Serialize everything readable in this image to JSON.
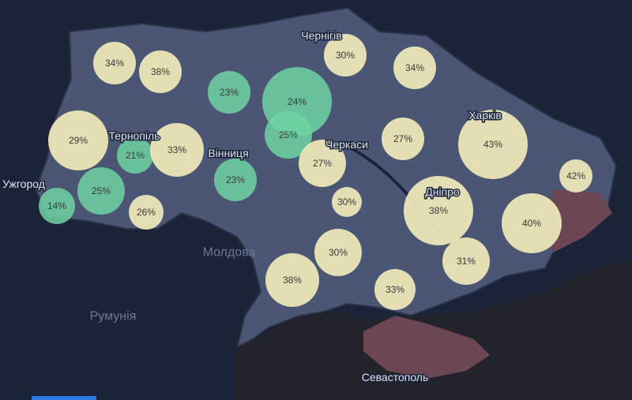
{
  "places": [
    {
      "label": "Чернігів"
    },
    {
      "label": "Харків"
    },
    {
      "label": "Тернопіль"
    },
    {
      "label": "Вінниця"
    },
    {
      "label": "Черкаси"
    },
    {
      "label": "Ужгород"
    },
    {
      "label": "Дніпро"
    },
    {
      "label": "Молдова"
    },
    {
      "label": "Румунія"
    },
    {
      "label": "Севастополь"
    }
  ],
  "bubbles": [
    {
      "label": "34%",
      "color": "#ebe6b6"
    },
    {
      "label": "38%",
      "color": "#ebe6b6"
    },
    {
      "label": "23%",
      "color": "#6fd3a2"
    },
    {
      "label": "24%",
      "color": "#6fd3a2"
    },
    {
      "label": "30%",
      "color": "#ebe6b6"
    },
    {
      "label": "34%",
      "color": "#ebe6b6"
    },
    {
      "label": "29%",
      "color": "#ebe6b6"
    },
    {
      "label": "21%",
      "color": "#6fd3a2"
    },
    {
      "label": "33%",
      "color": "#ebe6b6"
    },
    {
      "label": "25%",
      "color": "#6fd3a2"
    },
    {
      "label": "23%",
      "color": "#6fd3a2"
    },
    {
      "label": "27%",
      "color": "#ebe6b6"
    },
    {
      "label": "27%",
      "color": "#ebe6b6"
    },
    {
      "label": "43%",
      "color": "#ebe6b6"
    },
    {
      "label": "42%",
      "color": "#ebe6b6"
    },
    {
      "label": "25%",
      "color": "#6fd3a2"
    },
    {
      "label": "14%",
      "color": "#6fd3a2"
    },
    {
      "label": "26%",
      "color": "#ebe6b6"
    },
    {
      "label": "30%",
      "color": "#ebe6b6"
    },
    {
      "label": "38%",
      "color": "#ebe6b6"
    },
    {
      "label": "40%",
      "color": "#ebe6b6"
    },
    {
      "label": "30%",
      "color": "#ebe6b6"
    },
    {
      "label": "31%",
      "color": "#ebe6b6"
    },
    {
      "label": "38%",
      "color": "#ebe6b6"
    },
    {
      "label": "33%",
      "color": "#ebe6b6"
    }
  ]
}
